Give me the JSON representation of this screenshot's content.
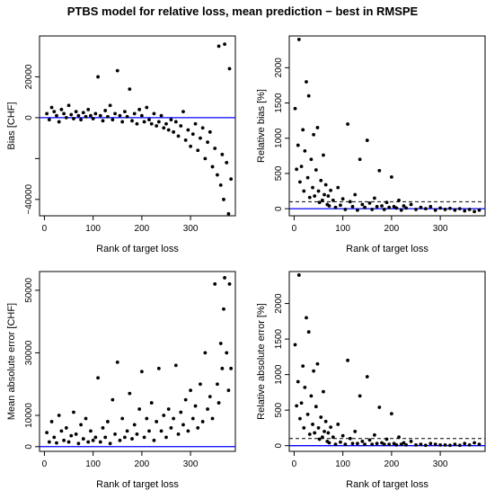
{
  "figure": {
    "title": "PTBS model for relative loss, mean prediction − best in RMSPE",
    "colors": {
      "points": "#000000",
      "hline": "#0000ff",
      "frame": "#000000"
    }
  },
  "chart_data": [
    {
      "type": "scatter",
      "xlabel": "Rank of target loss",
      "ylabel": "Bias [CHF]",
      "xlim": [
        -10,
        392
      ],
      "ylim": [
        -48000,
        40000
      ],
      "xticks": [
        0,
        100,
        200,
        300
      ],
      "yticks": [
        -40000,
        -20000,
        0,
        20000
      ],
      "ytick_labels": [
        "−40000",
        "",
        "0",
        "20000"
      ],
      "hline": {
        "y": 0,
        "color": "#0000ff",
        "style": "solid"
      },
      "points": [
        [
          5,
          2000
        ],
        [
          10,
          -1000
        ],
        [
          15,
          5000
        ],
        [
          20,
          3000
        ],
        [
          25,
          1000
        ],
        [
          30,
          -2000
        ],
        [
          35,
          4000
        ],
        [
          40,
          2000
        ],
        [
          45,
          0
        ],
        [
          50,
          6000
        ],
        [
          55,
          1500
        ],
        [
          60,
          -500
        ],
        [
          65,
          3000
        ],
        [
          70,
          1000
        ],
        [
          75,
          -1000
        ],
        [
          80,
          2500
        ],
        [
          85,
          500
        ],
        [
          90,
          4000
        ],
        [
          95,
          1000
        ],
        [
          100,
          -500
        ],
        [
          105,
          2000
        ],
        [
          110,
          20000
        ],
        [
          115,
          1000
        ],
        [
          120,
          -1500
        ],
        [
          125,
          3500
        ],
        [
          130,
          500
        ],
        [
          135,
          6000
        ],
        [
          140,
          -1000
        ],
        [
          145,
          2000
        ],
        [
          150,
          23000
        ],
        [
          155,
          1000
        ],
        [
          160,
          -2000
        ],
        [
          165,
          3000
        ],
        [
          170,
          500
        ],
        [
          175,
          14000
        ],
        [
          180,
          -1500
        ],
        [
          185,
          2000
        ],
        [
          190,
          -3000
        ],
        [
          195,
          4000
        ],
        [
          200,
          1000
        ],
        [
          205,
          -2000
        ],
        [
          210,
          5000
        ],
        [
          215,
          -1000
        ],
        [
          220,
          -3000
        ],
        [
          225,
          2000
        ],
        [
          230,
          -4000
        ],
        [
          235,
          -2000
        ],
        [
          240,
          1000
        ],
        [
          245,
          -5000
        ],
        [
          250,
          -3000
        ],
        [
          255,
          -6000
        ],
        [
          260,
          -1000
        ],
        [
          265,
          -7000
        ],
        [
          270,
          -2000
        ],
        [
          275,
          -9000
        ],
        [
          280,
          -4000
        ],
        [
          285,
          3000
        ],
        [
          290,
          -11000
        ],
        [
          295,
          -6000
        ],
        [
          300,
          -14000
        ],
        [
          305,
          -8000
        ],
        [
          310,
          -3000
        ],
        [
          315,
          -16000
        ],
        [
          320,
          -10000
        ],
        [
          325,
          -5000
        ],
        [
          330,
          -20000
        ],
        [
          335,
          -12000
        ],
        [
          340,
          -7000
        ],
        [
          345,
          -24000
        ],
        [
          350,
          -15000
        ],
        [
          355,
          -28000
        ],
        [
          358,
          35000
        ],
        [
          362,
          -33000
        ],
        [
          365,
          -18000
        ],
        [
          368,
          -40000
        ],
        [
          370,
          36000
        ],
        [
          374,
          -22000
        ],
        [
          378,
          -47000
        ],
        [
          380,
          24000
        ],
        [
          383,
          -30000
        ]
      ]
    },
    {
      "type": "scatter",
      "xlabel": "Rank of target loss",
      "ylabel": "Relative bias [%]",
      "xlim": [
        -10,
        392
      ],
      "ylim": [
        -100,
        2450
      ],
      "xticks": [
        0,
        100,
        200,
        300
      ],
      "yticks": [
        0,
        500,
        1000,
        1500,
        2000
      ],
      "ytick_labels": [
        "0",
        "500",
        "1000",
        "1500",
        "2000"
      ],
      "hline": {
        "y": 0,
        "color": "#0000ff",
        "style": "solid"
      },
      "hline2": {
        "y": 100,
        "color": "#000000",
        "style": "dashed"
      },
      "points": [
        [
          2,
          1420
        ],
        [
          5,
          560
        ],
        [
          8,
          900
        ],
        [
          10,
          2400
        ],
        [
          12,
          380
        ],
        [
          15,
          600
        ],
        [
          18,
          1120
        ],
        [
          20,
          250
        ],
        [
          22,
          820
        ],
        [
          25,
          1800
        ],
        [
          28,
          440
        ],
        [
          30,
          1600
        ],
        [
          32,
          160
        ],
        [
          35,
          700
        ],
        [
          38,
          300
        ],
        [
          40,
          1050
        ],
        [
          42,
          180
        ],
        [
          45,
          550
        ],
        [
          48,
          1150
        ],
        [
          50,
          250
        ],
        [
          52,
          90
        ],
        [
          55,
          400
        ],
        [
          58,
          120
        ],
        [
          60,
          760
        ],
        [
          62,
          200
        ],
        [
          65,
          340
        ],
        [
          68,
          60
        ],
        [
          70,
          180
        ],
        [
          72,
          40
        ],
        [
          75,
          260
        ],
        [
          80,
          120
        ],
        [
          85,
          20
        ],
        [
          90,
          300
        ],
        [
          95,
          50
        ],
        [
          100,
          140
        ],
        [
          105,
          -10
        ],
        [
          110,
          1200
        ],
        [
          115,
          100
        ],
        [
          120,
          30
        ],
        [
          125,
          200
        ],
        [
          130,
          -20
        ],
        [
          135,
          700
        ],
        [
          140,
          60
        ],
        [
          145,
          20
        ],
        [
          150,
          970
        ],
        [
          155,
          80
        ],
        [
          160,
          -10
        ],
        [
          165,
          150
        ],
        [
          170,
          30
        ],
        [
          175,
          540
        ],
        [
          180,
          40
        ],
        [
          185,
          -10
        ],
        [
          190,
          90
        ],
        [
          195,
          20
        ],
        [
          200,
          450
        ],
        [
          205,
          30
        ],
        [
          210,
          10
        ],
        [
          215,
          120
        ],
        [
          220,
          -20
        ],
        [
          225,
          40
        ],
        [
          230,
          10
        ],
        [
          240,
          60
        ],
        [
          250,
          -10
        ],
        [
          260,
          20
        ],
        [
          270,
          0
        ],
        [
          280,
          30
        ],
        [
          290,
          -20
        ],
        [
          300,
          10
        ],
        [
          310,
          -10
        ],
        [
          320,
          5
        ],
        [
          330,
          -20
        ],
        [
          340,
          0
        ],
        [
          350,
          -30
        ],
        [
          360,
          -10
        ],
        [
          370,
          -40
        ],
        [
          380,
          -20
        ]
      ]
    },
    {
      "type": "scatter",
      "xlabel": "Rank of target loss",
      "ylabel": "Mean absolute error [CHF]",
      "xlim": [
        -10,
        392
      ],
      "ylim": [
        -1500,
        56000
      ],
      "xticks": [
        0,
        100,
        200,
        300
      ],
      "yticks": [
        0,
        10000,
        30000,
        50000
      ],
      "ytick_labels": [
        "0",
        "10000",
        "30000",
        "50000"
      ],
      "hline": {
        "y": 0,
        "color": "#0000ff",
        "style": "solid"
      },
      "points": [
        [
          5,
          4500
        ],
        [
          10,
          1500
        ],
        [
          15,
          8000
        ],
        [
          20,
          3000
        ],
        [
          25,
          1200
        ],
        [
          30,
          10000
        ],
        [
          35,
          5000
        ],
        [
          40,
          2000
        ],
        [
          45,
          6000
        ],
        [
          50,
          1500
        ],
        [
          55,
          3500
        ],
        [
          60,
          11000
        ],
        [
          65,
          4000
        ],
        [
          70,
          1000
        ],
        [
          75,
          7000
        ],
        [
          80,
          2500
        ],
        [
          85,
          9000
        ],
        [
          90,
          1500
        ],
        [
          95,
          5000
        ],
        [
          100,
          2000
        ],
        [
          105,
          3000
        ],
        [
          110,
          22000
        ],
        [
          115,
          1500
        ],
        [
          120,
          6000
        ],
        [
          125,
          3000
        ],
        [
          130,
          8000
        ],
        [
          135,
          1000
        ],
        [
          140,
          15000
        ],
        [
          145,
          4000
        ],
        [
          150,
          27000
        ],
        [
          155,
          2000
        ],
        [
          160,
          9000
        ],
        [
          165,
          3000
        ],
        [
          170,
          5000
        ],
        [
          175,
          17000
        ],
        [
          180,
          2500
        ],
        [
          185,
          7000
        ],
        [
          190,
          4000
        ],
        [
          195,
          12000
        ],
        [
          200,
          24000
        ],
        [
          205,
          3000
        ],
        [
          210,
          9000
        ],
        [
          215,
          5000
        ],
        [
          220,
          14000
        ],
        [
          225,
          2000
        ],
        [
          230,
          8000
        ],
        [
          235,
          25000
        ],
        [
          240,
          5000
        ],
        [
          245,
          10000
        ],
        [
          250,
          3000
        ],
        [
          255,
          12000
        ],
        [
          260,
          6000
        ],
        [
          265,
          9000
        ],
        [
          270,
          26000
        ],
        [
          275,
          4000
        ],
        [
          280,
          11000
        ],
        [
          285,
          7000
        ],
        [
          290,
          15000
        ],
        [
          295,
          5000
        ],
        [
          300,
          18000
        ],
        [
          305,
          9000
        ],
        [
          310,
          13000
        ],
        [
          315,
          6000
        ],
        [
          320,
          20000
        ],
        [
          325,
          8000
        ],
        [
          330,
          30000
        ],
        [
          335,
          12000
        ],
        [
          340,
          16000
        ],
        [
          345,
          9000
        ],
        [
          350,
          52000
        ],
        [
          355,
          20000
        ],
        [
          358,
          14000
        ],
        [
          362,
          33000
        ],
        [
          365,
          25000
        ],
        [
          368,
          44000
        ],
        [
          370,
          54000
        ],
        [
          374,
          30000
        ],
        [
          378,
          18000
        ],
        [
          380,
          52000
        ],
        [
          383,
          25000
        ]
      ]
    },
    {
      "type": "scatter",
      "xlabel": "Rank of target loss",
      "ylabel": "Relative absolute error [%]",
      "xlim": [
        -10,
        392
      ],
      "ylim": [
        -80,
        2450
      ],
      "xticks": [
        0,
        100,
        200,
        300
      ],
      "yticks": [
        0,
        500,
        1000,
        1500,
        2000
      ],
      "ytick_labels": [
        "0",
        "500",
        "1000",
        "1500",
        "2000"
      ],
      "hline": {
        "y": 0,
        "color": "#0000ff",
        "style": "solid"
      },
      "hline2": {
        "y": 100,
        "color": "#000000",
        "style": "dashed"
      },
      "points": [
        [
          2,
          1420
        ],
        [
          5,
          560
        ],
        [
          8,
          900
        ],
        [
          10,
          2400
        ],
        [
          12,
          380
        ],
        [
          15,
          600
        ],
        [
          18,
          1120
        ],
        [
          20,
          250
        ],
        [
          22,
          820
        ],
        [
          25,
          1800
        ],
        [
          28,
          440
        ],
        [
          30,
          1600
        ],
        [
          32,
          160
        ],
        [
          35,
          700
        ],
        [
          38,
          300
        ],
        [
          40,
          1050
        ],
        [
          42,
          180
        ],
        [
          45,
          550
        ],
        [
          48,
          1150
        ],
        [
          50,
          250
        ],
        [
          52,
          90
        ],
        [
          55,
          400
        ],
        [
          58,
          120
        ],
        [
          60,
          760
        ],
        [
          62,
          200
        ],
        [
          65,
          340
        ],
        [
          68,
          60
        ],
        [
          70,
          180
        ],
        [
          72,
          40
        ],
        [
          75,
          260
        ],
        [
          80,
          120
        ],
        [
          85,
          20
        ],
        [
          90,
          300
        ],
        [
          95,
          50
        ],
        [
          100,
          140
        ],
        [
          105,
          20
        ],
        [
          110,
          1200
        ],
        [
          115,
          100
        ],
        [
          120,
          30
        ],
        [
          125,
          200
        ],
        [
          130,
          30
        ],
        [
          135,
          700
        ],
        [
          140,
          60
        ],
        [
          145,
          20
        ],
        [
          150,
          970
        ],
        [
          155,
          80
        ],
        [
          160,
          20
        ],
        [
          165,
          150
        ],
        [
          170,
          30
        ],
        [
          175,
          540
        ],
        [
          180,
          40
        ],
        [
          185,
          20
        ],
        [
          190,
          90
        ],
        [
          195,
          20
        ],
        [
          200,
          450
        ],
        [
          205,
          30
        ],
        [
          210,
          10
        ],
        [
          215,
          120
        ],
        [
          220,
          20
        ],
        [
          225,
          40
        ],
        [
          230,
          10
        ],
        [
          240,
          60
        ],
        [
          250,
          10
        ],
        [
          260,
          20
        ],
        [
          270,
          5
        ],
        [
          280,
          30
        ],
        [
          290,
          20
        ],
        [
          300,
          10
        ],
        [
          310,
          10
        ],
        [
          320,
          5
        ],
        [
          330,
          20
        ],
        [
          340,
          5
        ],
        [
          350,
          30
        ],
        [
          360,
          10
        ],
        [
          370,
          40
        ],
        [
          380,
          20
        ]
      ]
    }
  ]
}
